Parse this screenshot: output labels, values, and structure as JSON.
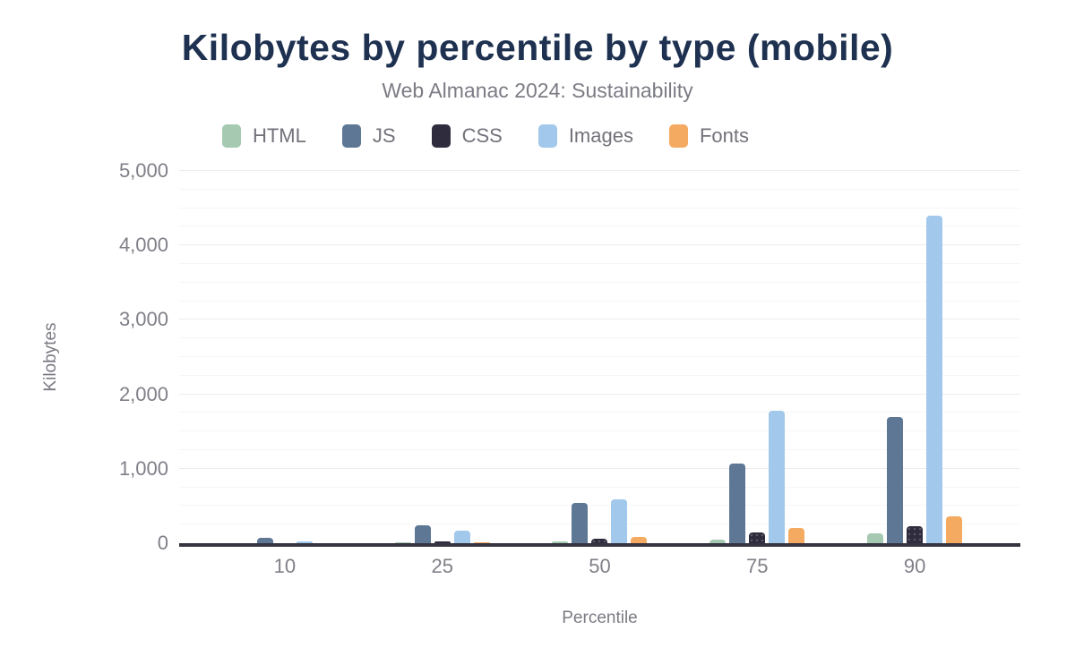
{
  "header": {
    "title": "Kilobytes by percentile by type (mobile)",
    "subtitle": "Web Almanac 2024: Sustainability"
  },
  "chart_data": {
    "type": "bar",
    "title": "Kilobytes by percentile by type (mobile)",
    "subtitle": "Web Almanac 2024: Sustainability",
    "xlabel": "Percentile",
    "ylabel": "Kilobytes",
    "categories": [
      "10",
      "25",
      "50",
      "75",
      "90"
    ],
    "series": [
      {
        "name": "HTML",
        "color": "#a6cab1",
        "pattern": "none",
        "values": [
          5,
          10,
          25,
          50,
          130
        ]
      },
      {
        "name": "JS",
        "color": "#5d7795",
        "pattern": "none",
        "values": [
          70,
          235,
          545,
          1065,
          1690
        ]
      },
      {
        "name": "CSS",
        "color": "#2f2c3d",
        "pattern": "dots",
        "values": [
          5,
          25,
          65,
          145,
          230
        ]
      },
      {
        "name": "Images",
        "color": "#a2c8eb",
        "pattern": "none",
        "values": [
          25,
          165,
          585,
          1785,
          4395
        ]
      },
      {
        "name": "Fonts",
        "color": "#f4ab61",
        "pattern": "none",
        "values": [
          0,
          15,
          90,
          205,
          365
        ]
      }
    ],
    "ylim": [
      0,
      5000
    ],
    "y_major_step": 1000,
    "y_minor_step": 250,
    "y_tick_labels": [
      "0",
      "1,000",
      "2,000",
      "3,000",
      "4,000",
      "5,000"
    ],
    "grid": true,
    "legend_position": "top",
    "colors": {
      "title": "#1e3150",
      "subtitle": "#7b7b84",
      "axis_line": "#35343f",
      "tick_label": "#7f7f88",
      "gridline_major": "#ebebee",
      "gridline_minor": "#f6f6f8",
      "background": "#ffffff"
    }
  }
}
